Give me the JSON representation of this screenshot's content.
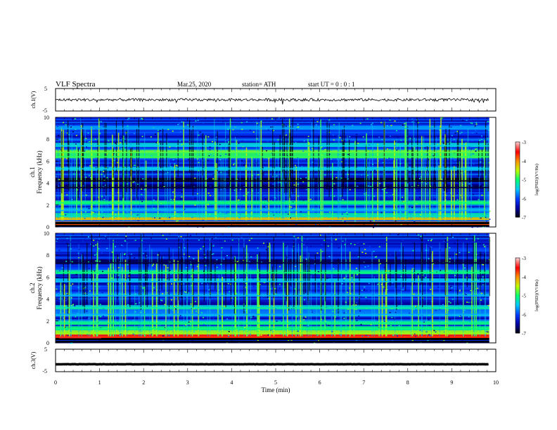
{
  "header": {
    "title": "VLF  Spectra",
    "date": "Mar.25, 2020",
    "station": "station= ATH",
    "start_ut": "start  UT  =    0 : 0  : 1"
  },
  "chart_data": [
    {
      "type": "line",
      "panel": "ch1-waveform",
      "ylabel": "ch.1(V)",
      "ylim": [
        -5,
        5
      ],
      "yticks": [
        "5",
        "-5"
      ],
      "xlim": [
        0,
        10
      ],
      "trace_level": 0.0,
      "trace_amplitude": 1.2
    },
    {
      "type": "heatmap",
      "panel": "ch1-spectrogram",
      "ylabel": "ch.1\nFrequency (kHz)",
      "ylim": [
        0,
        10
      ],
      "yticks": [
        "10",
        "8",
        "6",
        "4",
        "2",
        "0"
      ],
      "xlim": [
        0,
        9.85
      ],
      "colorbar": {
        "label": "log(PSD)(V²/Hz)",
        "range": [
          -7,
          -3
        ],
        "ticks": [
          "-3",
          "-4",
          "-5",
          "-6",
          "-7"
        ]
      },
      "bands_khz": [
        {
          "f": 0.3,
          "level": -3.8
        },
        {
          "f": 0.7,
          "level": -4.2
        },
        {
          "f": 1.0,
          "level": -5.2
        },
        {
          "f": 1.5,
          "level": -5.6
        },
        {
          "f": 2.2,
          "level": -5.0
        },
        {
          "f": 3.6,
          "level": -6.8
        },
        {
          "f": 4.2,
          "level": -6.9
        },
        {
          "f": 5.3,
          "level": -5.4
        },
        {
          "f": 6.4,
          "level": -4.9
        },
        {
          "f": 6.8,
          "level": -4.8
        },
        {
          "f": 7.4,
          "level": -5.4
        },
        {
          "f": 9.0,
          "level": -5.6
        }
      ]
    },
    {
      "type": "heatmap",
      "panel": "ch2-spectrogram",
      "ylabel": "ch.2\nFrequency (kHz)",
      "ylim": [
        0,
        10
      ],
      "yticks": [
        "10",
        "8",
        "6",
        "4",
        "2",
        "0"
      ],
      "xlim": [
        0,
        9.85
      ],
      "colorbar": {
        "label": "log(PSD)(V²/Hz)",
        "range": [
          -7,
          -3
        ],
        "ticks": [
          "-3",
          "-4",
          "-5",
          "-6",
          "-7"
        ]
      },
      "bands_khz": [
        {
          "f": 0.5,
          "level": -3.6
        },
        {
          "f": 0.9,
          "level": -4.6
        },
        {
          "f": 1.3,
          "level": -5.0
        },
        {
          "f": 1.8,
          "level": -5.1
        },
        {
          "f": 2.6,
          "level": -5.6
        },
        {
          "f": 3.2,
          "level": -5.2
        },
        {
          "f": 4.3,
          "level": -5.6
        },
        {
          "f": 5.6,
          "level": -5.5
        },
        {
          "f": 6.4,
          "level": -5.0
        },
        {
          "f": 7.3,
          "level": -6.8
        },
        {
          "f": 9.2,
          "level": -6.2
        }
      ]
    },
    {
      "type": "line",
      "panel": "ch3-waveform",
      "ylabel": "ch.3(V)",
      "ylim": [
        -5,
        5
      ],
      "yticks": [
        "5",
        "-5"
      ],
      "xlim": [
        0,
        10
      ],
      "trace_level": -1.7,
      "trace_amplitude": 0.1
    }
  ],
  "xaxis": {
    "label": "Time  (min)",
    "ticks": [
      "0",
      "1",
      "2",
      "3",
      "4",
      "5",
      "6",
      "7",
      "8",
      "9",
      "10"
    ]
  }
}
